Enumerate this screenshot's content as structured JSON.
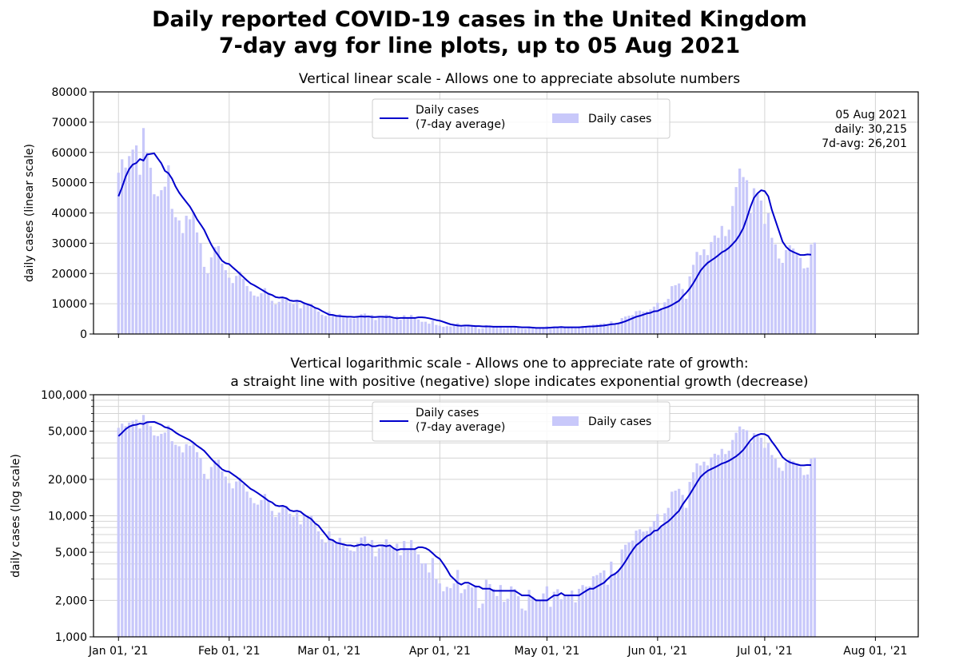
{
  "figure": {
    "title_line1": "Daily reported COVID-19 cases in the United Kingdom",
    "title_line2": "7-day avg for line plots, up to 05 Aug 2021"
  },
  "colors": {
    "line": "#0000cc",
    "bars": "#c8c8fa",
    "grid": "#d4d4d4",
    "axes": "#000000"
  },
  "legend": {
    "line_label_1": "Daily cases",
    "line_label_2": "(7-day average)",
    "bar_label": "Daily cases",
    "placement": "upper center"
  },
  "annotation": {
    "line1": "05 Aug 2021",
    "line2": "daily: 30,215",
    "line3": "7d-avg: 26,201"
  },
  "chart_data": [
    {
      "type": "bar+line",
      "title": "Vertical linear scale - Allows one to appreciate absolute numbers",
      "xlabel": "",
      "ylabel": "daily cases (linear scale)",
      "yscale": "linear",
      "ylim": [
        0,
        80000
      ],
      "yticks": [
        0,
        10000,
        20000,
        30000,
        40000,
        50000,
        60000,
        70000,
        80000
      ],
      "ytick_labels": [
        "0",
        "10000",
        "20000",
        "30000",
        "40000",
        "50000",
        "60000",
        "70000",
        "80000"
      ],
      "grid": true
    },
    {
      "type": "bar+line",
      "title_line1": "Vertical logarithmic scale - Allows one to appreciate rate of growth:",
      "title_line2": "a straight line with positive (negative) slope indicates exponential growth (decrease)",
      "xlabel": "",
      "ylabel": "daily cases (log scale)",
      "yscale": "log",
      "ylim": [
        1000,
        100000
      ],
      "yticks": [
        1000,
        2000,
        5000,
        10000,
        20000,
        50000,
        100000
      ],
      "ytick_labels": [
        "1,000",
        "2,000",
        "5,000",
        "10,000",
        "20,000",
        "50,000",
        "100,000"
      ],
      "grid": true
    }
  ],
  "series": {
    "xlim": [
      "2020-12-25",
      "2021-08-13"
    ],
    "xticks": [
      "2021-01-01",
      "2021-02-01",
      "2021-03-01",
      "2021-04-01",
      "2021-05-01",
      "2021-06-01",
      "2021-07-01",
      "2021-08-01"
    ],
    "xtick_labels": [
      "Jan 01, '21",
      "Feb 01, '21",
      "Mar 01, '21",
      "Apr 01, '21",
      "May 01, '21",
      "Jun 01, '21",
      "Jul 01, '21",
      "Aug 01, '21"
    ],
    "first_date": "2021-01-01",
    "daily_cases": [
      53285,
      57725,
      54990,
      58784,
      60916,
      62322,
      52618,
      68053,
      59937,
      54940,
      46169,
      45533,
      47525,
      48682,
      55761,
      41346,
      38598,
      37535,
      33355,
      39068,
      37892,
      40261,
      33552,
      30004,
      22195,
      20089,
      25308,
      28680,
      29079,
      23275,
      21088,
      18607,
      16840,
      19202,
      20634,
      18262,
      15845,
      14104,
      12718,
      12364,
      13494,
      15144,
      13308,
      10972,
      9765,
      10625,
      12057,
      12027,
      10406,
      9834,
      10641,
      8489,
      10406,
      9938,
      9985,
      8523,
      7434,
      6391,
      5977,
      7434,
      6385,
      6040,
      6573,
      5947,
      5455,
      5177,
      5089,
      5926,
      6609,
      6753,
      5766,
      6303,
      4618,
      5379,
      5605,
      6397,
      5758,
      5312,
      5882,
      4715,
      6187,
      5187,
      6303,
      5252,
      4802,
      4040,
      4052,
      3402,
      4479,
      3010,
      2762,
      2379,
      2589,
      2524,
      2763,
      3568,
      2297,
      2472,
      2706,
      2555,
      2672,
      1730,
      1882,
      2963,
      2729,
      2491,
      2174,
      2678,
      1946,
      2061,
      2613,
      2490,
      2166,
      1712,
      1649,
      2445,
      2144,
      2047,
      1979,
      2284,
      2613,
      1770,
      2357,
      2474,
      2047,
      2240,
      2193,
      2412,
      1926,
      2493,
      2677,
      2598,
      2613,
      3165,
      3240,
      3383,
      3542,
      2694,
      4182,
      3398,
      3542,
      5274,
      5765,
      6048,
      6238,
      7540,
      7738,
      7393,
      7490,
      8125,
      9055,
      10321,
      8125,
      10476,
      11625,
      15810,
      16135,
      16703,
      14876,
      11625,
      19047,
      22868,
      27125,
      26068,
      27989,
      26068,
      30398,
      32551,
      31772,
      35707,
      32367,
      34471,
      42302,
      48553,
      54674,
      51870,
      50824,
      39950,
      48161,
      46558,
      44104,
      36389,
      39906,
      31795,
      29622,
      24950,
      23511,
      27734,
      29312,
      28251,
      26628,
      25161,
      21691,
      21952,
      29612,
      30215
    ],
    "avg_7d": [
      45500,
      48500,
      52000,
      54500,
      56000,
      56500,
      57800,
      57300,
      59300,
      59500,
      59700,
      58000,
      56400,
      53900,
      53100,
      51300,
      48700,
      46700,
      45100,
      43600,
      42100,
      40100,
      37900,
      36200,
      34400,
      31900,
      29500,
      27500,
      25900,
      24200,
      23400,
      23100,
      22000,
      21000,
      19900,
      18800,
      17700,
      16700,
      16100,
      15400,
      14700,
      14000,
      13300,
      12900,
      12200,
      12000,
      12100,
      11800,
      11100,
      10900,
      11000,
      10800,
      10200,
      9800,
      9400,
      8700,
      8300,
      7600,
      7000,
      6400,
      6300,
      6000,
      5900,
      5800,
      5700,
      5700,
      5600,
      5700,
      5800,
      5700,
      5800,
      5600,
      5600,
      5700,
      5700,
      5600,
      5700,
      5400,
      5200,
      5300,
      5300,
      5300,
      5300,
      5300,
      5500,
      5500,
      5400,
      5200,
      4900,
      4600,
      4400,
      4000,
      3600,
      3200,
      3000,
      2800,
      2700,
      2800,
      2800,
      2700,
      2600,
      2600,
      2500,
      2500,
      2500,
      2400,
      2400,
      2400,
      2400,
      2400,
      2400,
      2400,
      2300,
      2200,
      2200,
      2200,
      2100,
      2000,
      2000,
      2000,
      2000,
      2100,
      2200,
      2200,
      2300,
      2200,
      2200,
      2200,
      2200,
      2200,
      2300,
      2400,
      2500,
      2500,
      2600,
      2700,
      2800,
      3000,
      3200,
      3300,
      3500,
      3800,
      4200,
      4700,
      5200,
      5700,
      6000,
      6400,
      6800,
      7000,
      7500,
      7600,
      8200,
      8600,
      9000,
      9600,
      10300,
      11000,
      12400,
      13600,
      15000,
      16800,
      18800,
      20900,
      22300,
      23500,
      24300,
      25100,
      26000,
      27000,
      27600,
      28500,
      29700,
      31000,
      32800,
      35000,
      38300,
      42000,
      45000,
      46500,
      47500,
      47200,
      45500,
      41000,
      37500,
      34000,
      30500,
      28800,
      27700,
      27100,
      26600,
      26100,
      26100,
      26300,
      26201
    ]
  }
}
